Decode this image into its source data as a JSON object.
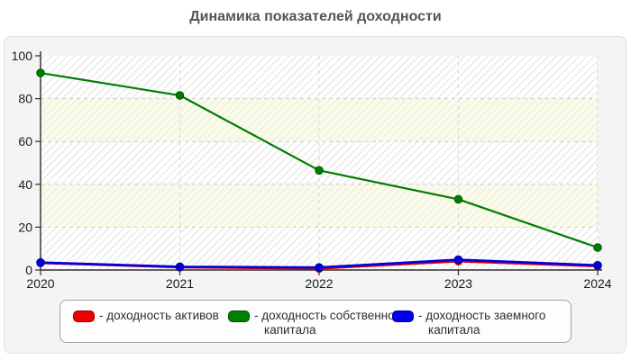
{
  "page": {
    "title": "Динамика показателей доходности"
  },
  "chart_data": {
    "type": "line",
    "title": "Динамика показателей доходности",
    "x": [
      "2020",
      "2021",
      "2022",
      "2023",
      "2024"
    ],
    "series": [
      {
        "id": "assets",
        "name": "доходность активов",
        "color": "#e00000",
        "marker_stroke": "#a00000",
        "values": [
          3.2,
          1.2,
          0.6,
          4.0,
          1.7
        ]
      },
      {
        "id": "equity",
        "name": "доходность собственного капитала",
        "color": "#007d00",
        "marker_stroke": "#005a00",
        "values": [
          92,
          81.5,
          46.5,
          33,
          10.5
        ]
      },
      {
        "id": "borrowed",
        "name": "доходность заемного капитала",
        "color": "#0000e0",
        "marker_stroke": "#0000a0",
        "values": [
          3.5,
          1.5,
          1.2,
          4.8,
          2.2
        ]
      }
    ],
    "xlabel": "",
    "ylabel": "",
    "ylim": [
      0,
      100
    ],
    "yticks": [
      0,
      20,
      40,
      60,
      80,
      100
    ],
    "grid": {
      "horizontal": "dashed",
      "vertical": "dashed"
    },
    "legend_position": "bottom"
  },
  "legend": {
    "items": [
      {
        "label": "- доходность активов",
        "swatch_color": "#ee0000",
        "swatch_border": "#990000"
      },
      {
        "label": "- доходность собственного капитала",
        "swatch_color": "#008000",
        "swatch_border": "#004c00"
      },
      {
        "label": "- доходность заемного капитала",
        "swatch_color": "#0000ee",
        "swatch_border": "#000099"
      }
    ]
  }
}
